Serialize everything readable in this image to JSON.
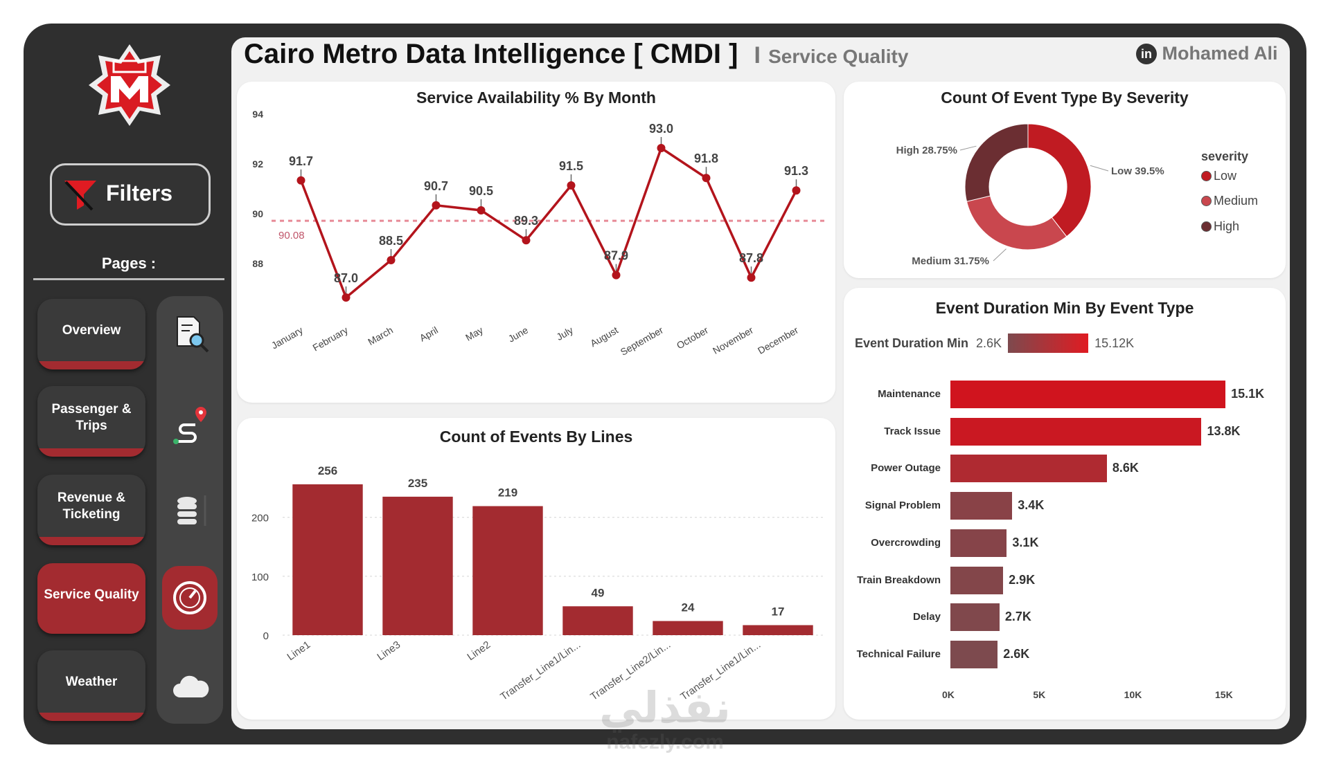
{
  "header": {
    "title": "Cairo Metro Data Intelligence [ CMDI ]",
    "separator": "I",
    "subtitle": "Service Quality",
    "author": "Mohamed Ali",
    "author_icon": "linkedin-icon"
  },
  "sidebar": {
    "logo": "cairo-metro-logo",
    "filters_label": "Filters",
    "pages_label": "Pages :",
    "pages": [
      {
        "label": "Overview",
        "icon": "report-search-icon",
        "active": false
      },
      {
        "label": "Passenger & Trips",
        "icon": "route-pin-icon",
        "active": false
      },
      {
        "label": "Revenue & Ticketing",
        "icon": "database-icon",
        "active": false
      },
      {
        "label": "Service Quality",
        "icon": "gauge-icon",
        "active": true
      },
      {
        "label": "Weather",
        "icon": "cloud-icon",
        "active": false
      }
    ]
  },
  "colors": {
    "accent": "#c01b22",
    "bar_dark": "#a32b30",
    "low": "#c01b22",
    "medium": "#c9474e",
    "high": "#6b2e32",
    "avg_line": "#e78a96"
  },
  "charts": {
    "availability": {
      "title": "Service Availability % By Month",
      "avg_label": "90.08",
      "chart_data": {
        "type": "line",
        "categories": [
          "January",
          "February",
          "March",
          "April",
          "May",
          "June",
          "July",
          "August",
          "September",
          "October",
          "November",
          "December"
        ],
        "values": [
          91.7,
          87.0,
          88.5,
          90.7,
          90.5,
          89.3,
          91.5,
          87.9,
          93.0,
          91.8,
          87.8,
          91.3
        ],
        "value_labels": [
          "91.7",
          "87.0",
          "88.5",
          "90.7",
          "90.5",
          "89.3",
          "91.5",
          "87.9",
          "93.0",
          "91.8",
          "87.8",
          "91.3"
        ],
        "average": 90.08,
        "ylim": [
          86.5,
          94
        ],
        "yticks": [
          "88",
          "90",
          "92",
          "94"
        ],
        "ytick_values": [
          88,
          90,
          92,
          94
        ]
      }
    },
    "severity": {
      "title": "Count Of Event Type By Severity",
      "legend_title": "severity",
      "legend": [
        "Low",
        "Medium",
        "High"
      ],
      "slice_labels": [
        "Low 39.5%",
        "Medium 31.75%",
        "High 28.75%"
      ],
      "chart_data": {
        "type": "pie",
        "categories": [
          "Low",
          "Medium",
          "High"
        ],
        "values": [
          39.5,
          31.75,
          28.75
        ],
        "legend_position": "right"
      }
    },
    "events_by_line": {
      "title": "Count of Events By Lines",
      "chart_data": {
        "type": "bar",
        "categories": [
          "Line1",
          "Line3",
          "Line2",
          "Transfer_Line1/Lin...",
          "Transfer_Line2/Lin...",
          "Transfer_Line1/Lin..."
        ],
        "values": [
          256,
          235,
          219,
          49,
          24,
          17
        ],
        "value_labels": [
          "256",
          "235",
          "219",
          "49",
          "24",
          "17"
        ],
        "yticks": [
          "0",
          "100",
          "200"
        ],
        "ytick_values": [
          0,
          100,
          200
        ],
        "ylim": [
          0,
          256
        ]
      }
    },
    "duration": {
      "title": "Event Duration Min By Event Type",
      "scale_label": "Event Duration Min",
      "scale_min": "2.6K",
      "scale_max": "15.12K",
      "chart_data": {
        "type": "bar",
        "orientation": "horizontal",
        "categories": [
          "Maintenance",
          "Track Issue",
          "Power Outage",
          "Signal Problem",
          "Overcrowding",
          "Train Breakdown",
          "Delay",
          "Technical Failure"
        ],
        "values": [
          15120,
          13800,
          8600,
          3400,
          3100,
          2900,
          2700,
          2600
        ],
        "value_labels": [
          "15.1K",
          "13.8K",
          "8.6K",
          "3.4K",
          "3.1K",
          "2.9K",
          "2.7K",
          "2.6K"
        ],
        "xticks": [
          "0K",
          "5K",
          "10K",
          "15K"
        ],
        "xtick_values": [
          0,
          5000,
          10000,
          15000
        ],
        "xlim": [
          0,
          15000
        ]
      }
    }
  },
  "watermark": {
    "arabic": "نفذلي",
    "latin": "nafezly.com"
  }
}
